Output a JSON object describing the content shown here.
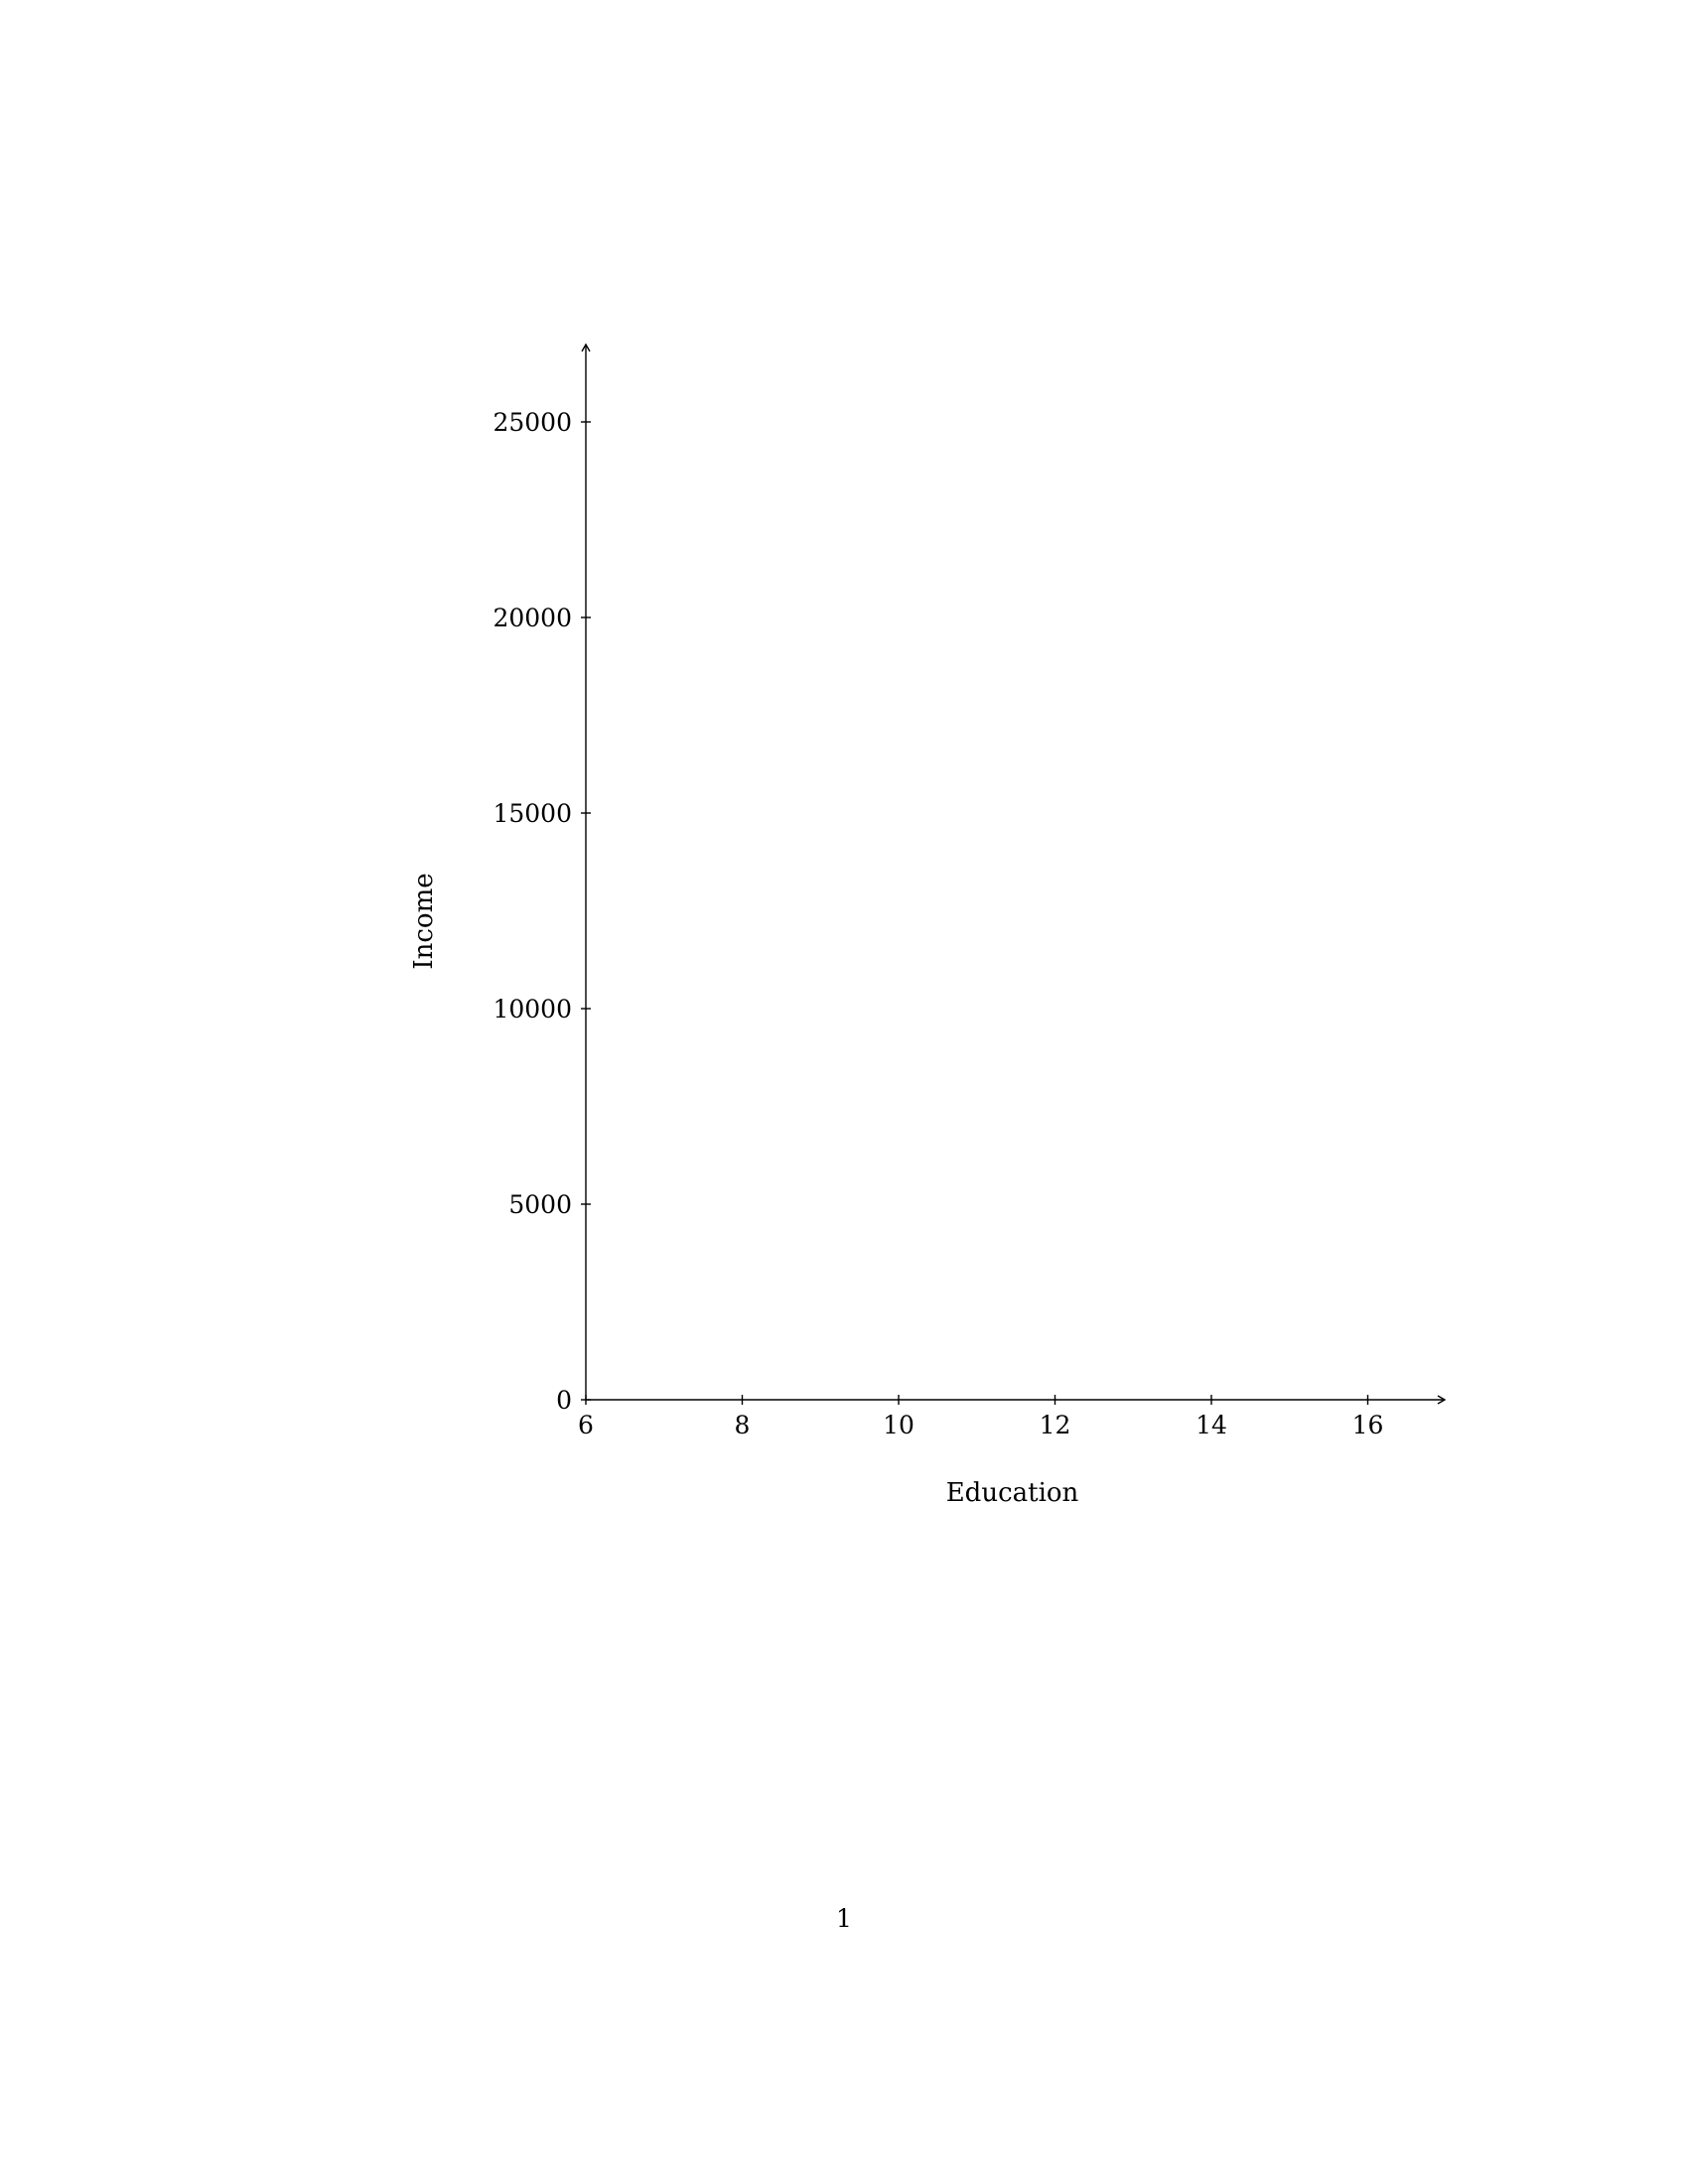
{
  "chart_data": {
    "type": "scatter",
    "title": "",
    "xlabel": "Education",
    "ylabel": "Income",
    "xlim": [
      6,
      17
    ],
    "ylim": [
      0,
      27000
    ],
    "x_ticks": [
      6,
      8,
      10,
      12,
      14,
      16
    ],
    "y_ticks": [
      0,
      5000,
      10000,
      15000,
      20000,
      25000
    ],
    "x_tick_labels": [
      "6",
      "8",
      "10",
      "12",
      "14",
      "16"
    ],
    "y_tick_labels": [
      "0",
      "5000",
      "10000",
      "15000",
      "20000",
      "25000"
    ],
    "series": [],
    "grid": false,
    "legend": "none"
  },
  "page": {
    "number": "1"
  },
  "colors": {
    "axis": "#000000",
    "background": "#ffffff"
  }
}
